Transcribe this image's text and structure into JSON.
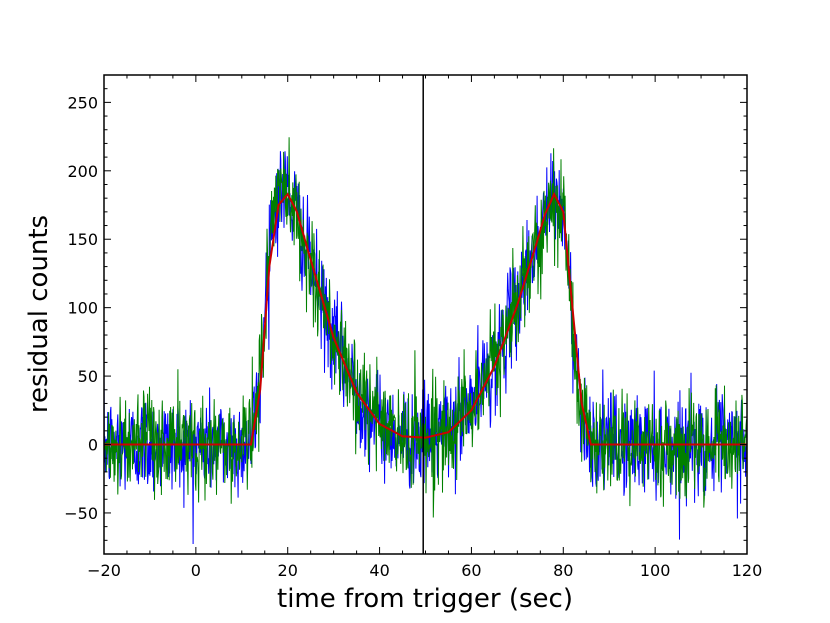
{
  "chart_data": {
    "type": "line",
    "title": "",
    "xlabel": "time from trigger (sec)",
    "ylabel": "residual counts",
    "xlim": [
      -20,
      120
    ],
    "ylim": [
      -80,
      270
    ],
    "x_ticks": [
      -20,
      0,
      20,
      40,
      60,
      80,
      100,
      120
    ],
    "y_ticks": [
      -50,
      0,
      50,
      100,
      150,
      200,
      250
    ],
    "x_tick_labels": [
      "−20",
      "0",
      "20",
      "40",
      "60",
      "80",
      "100",
      "120"
    ],
    "y_tick_labels": [
      "−50",
      "0",
      "50",
      "100",
      "150",
      "200",
      "250"
    ],
    "grid": false,
    "legend": "none",
    "vertical_line_x": 49.5,
    "colors": {
      "series_blue": "#0000ff",
      "series_green": "#008000",
      "model_fit": "#cc0000",
      "vertical_line": "#000000"
    },
    "series": [
      {
        "color": "blue",
        "noise_sigma": 18,
        "x": [
          -20,
          -15,
          -10,
          -5,
          0,
          5,
          10,
          12,
          14,
          16,
          18,
          20,
          22,
          25,
          30,
          35,
          40,
          45,
          50,
          55,
          60,
          65,
          70,
          74,
          76,
          78,
          80,
          82,
          84,
          86,
          90,
          100,
          110,
          120
        ],
        "y": [
          0,
          0,
          0,
          0,
          0,
          0,
          0,
          2,
          45,
          150,
          185,
          185,
          168,
          130,
          75,
          38,
          15,
          6,
          5,
          10,
          28,
          60,
          105,
          145,
          168,
          182,
          170,
          90,
          25,
          2,
          0,
          0,
          0,
          0
        ]
      },
      {
        "color": "green",
        "noise_sigma": 18,
        "x": [
          -20,
          -15,
          -10,
          -5,
          0,
          5,
          10,
          12,
          14,
          16,
          18,
          20,
          22,
          25,
          30,
          35,
          40,
          45,
          50,
          55,
          60,
          65,
          70,
          74,
          76,
          78,
          80,
          82,
          84,
          86,
          90,
          100,
          110,
          120
        ],
        "y": [
          0,
          0,
          0,
          0,
          0,
          0,
          0,
          2,
          45,
          150,
          185,
          185,
          168,
          130,
          75,
          38,
          15,
          6,
          5,
          10,
          28,
          60,
          105,
          145,
          168,
          182,
          170,
          90,
          25,
          2,
          0,
          0,
          0,
          0
        ]
      },
      {
        "color": "red",
        "x": [
          -20,
          0,
          12,
          14,
          16,
          18,
          20,
          22,
          25,
          30,
          35,
          40,
          45,
          50,
          55,
          60,
          65,
          70,
          74,
          76,
          78,
          80,
          82,
          84,
          86,
          100,
          120
        ],
        "y": [
          0,
          0,
          0,
          40,
          130,
          175,
          183,
          170,
          135,
          78,
          38,
          15,
          6,
          5,
          9,
          25,
          57,
          102,
          145,
          168,
          183,
          170,
          100,
          30,
          0,
          0,
          0
        ]
      }
    ]
  }
}
